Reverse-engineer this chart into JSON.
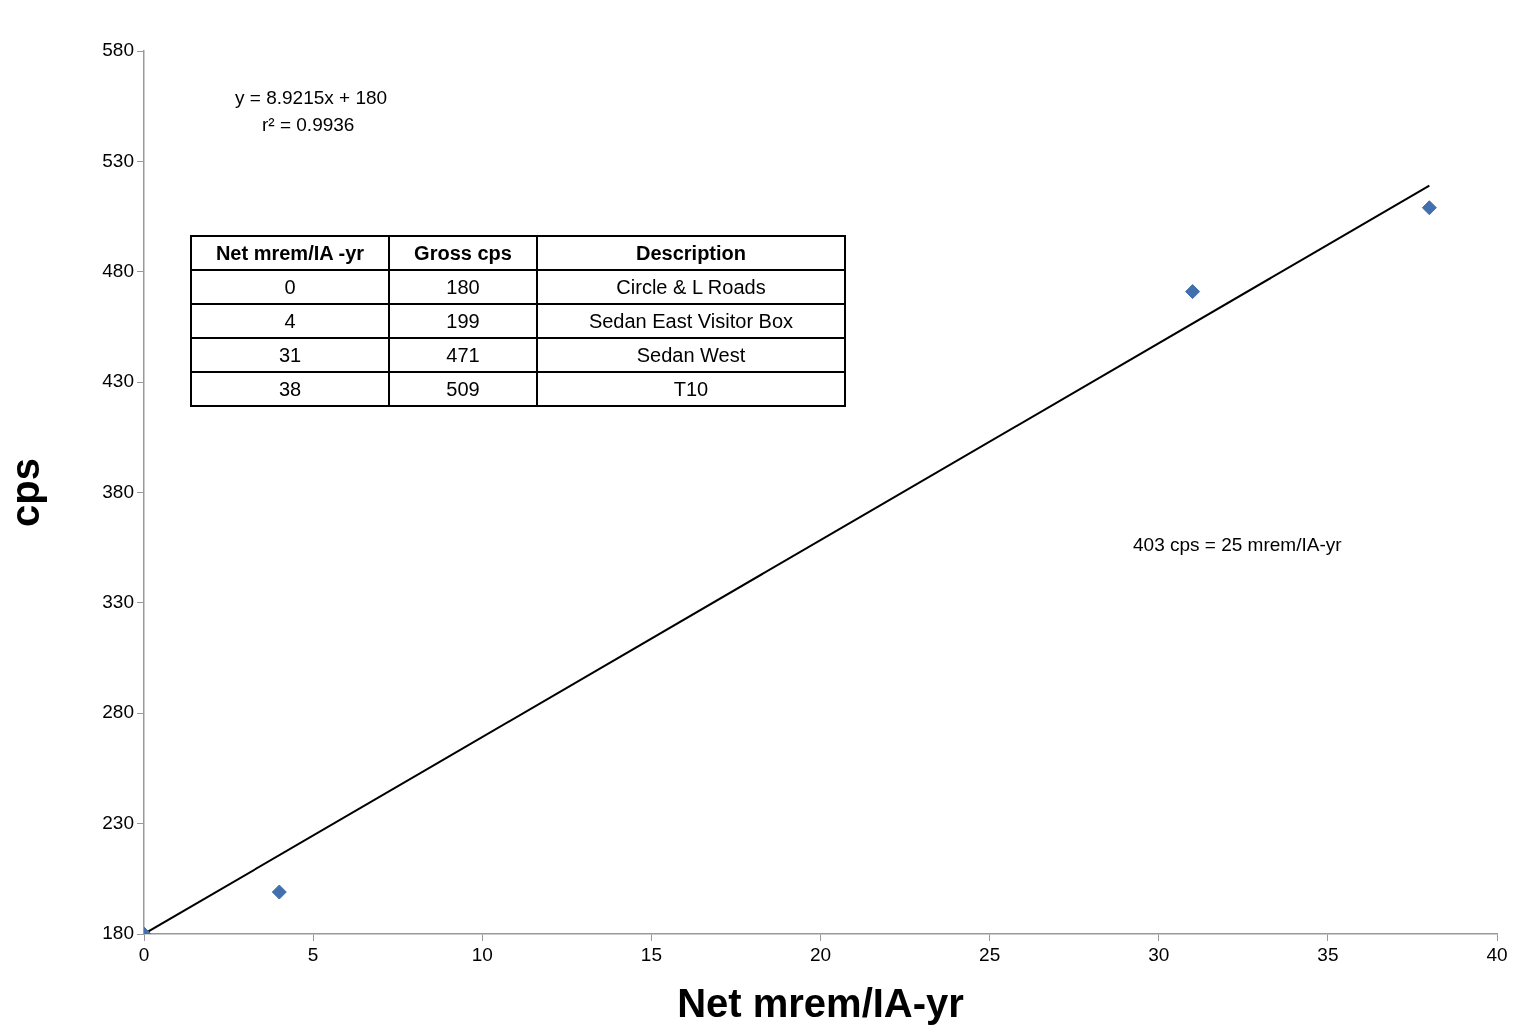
{
  "chart_data": {
    "type": "scatter",
    "xlabel": "Net mrem/IA-yr",
    "ylabel": "cps",
    "xlim": [
      0,
      40
    ],
    "xticks": [
      0,
      5,
      10,
      15,
      20,
      25,
      30,
      35,
      40
    ],
    "ylim": [
      180,
      580
    ],
    "yticks": [
      180,
      230,
      280,
      330,
      380,
      430,
      480,
      530,
      580
    ],
    "grid": false,
    "series": [
      {
        "type": "scatter",
        "color": "#4170ad",
        "marker": "diamond",
        "x": [
          0,
          4,
          31,
          38
        ],
        "values": [
          180,
          199,
          471,
          509
        ]
      },
      {
        "type": "line",
        "color": "#000000",
        "marker": "none",
        "x": [
          0,
          38
        ],
        "values": [
          180,
          519.0
        ]
      }
    ],
    "annotations": [
      "y = 8.9215x + 180",
      "r² = 0.9936",
      "403 cps = 25 mrem/IA-yr",
      "Net mrem/IA -yr",
      "Gross cps",
      "Description",
      "0",
      "180",
      "Circle & L Roads",
      "4",
      "199",
      "Sedan East Visitor Box",
      "31",
      "471",
      "Sedan West",
      "38",
      "509",
      "T10"
    ]
  }
}
